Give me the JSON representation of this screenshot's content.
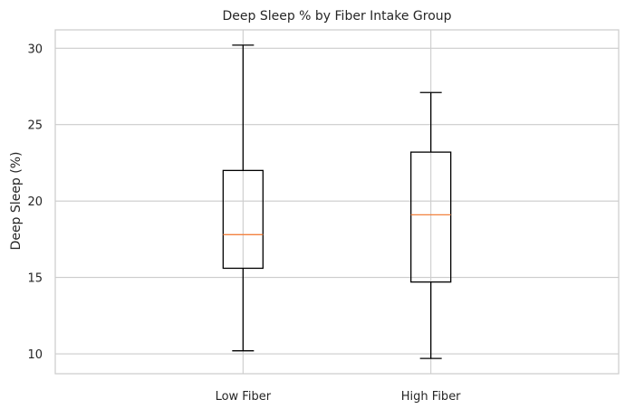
{
  "chart_data": {
    "type": "box",
    "title": "Deep Sleep % by Fiber Intake Group",
    "xlabel": "",
    "ylabel": "Deep Sleep (%)",
    "ylim": [
      8.7,
      31.2
    ],
    "yticks": [
      10,
      15,
      20,
      25,
      30
    ],
    "grid": true,
    "categories": [
      "Low Fiber",
      "High Fiber"
    ],
    "boxes": [
      {
        "category": "Low Fiber",
        "whisker_low": 10.2,
        "q1": 15.6,
        "median": 17.8,
        "q3": 22.0,
        "whisker_high": 30.2
      },
      {
        "category": "High Fiber",
        "whisker_low": 9.7,
        "q1": 14.7,
        "median": 19.1,
        "q3": 23.2,
        "whisker_high": 27.1
      }
    ],
    "colors": {
      "box": "#000000",
      "median": "#f2813e",
      "grid": "#cccccc"
    }
  }
}
